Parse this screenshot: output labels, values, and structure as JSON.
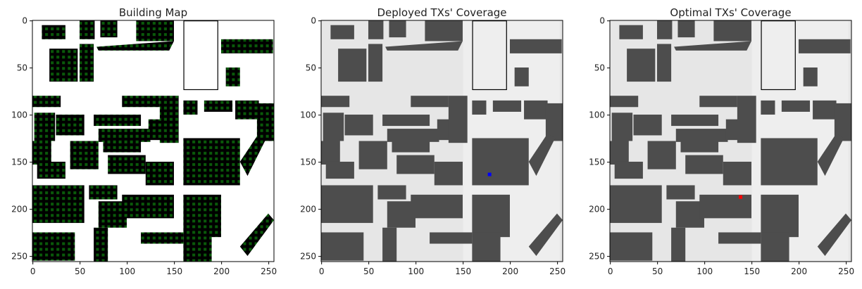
{
  "chart_data": [
    {
      "type": "image",
      "title": "Building Map",
      "xlim": [
        -0.5,
        255.5
      ],
      "ylim": [
        255.5,
        -0.5
      ],
      "xticks": [
        0,
        50,
        100,
        150,
        200,
        250
      ],
      "yticks": [
        0,
        50,
        100,
        150,
        200,
        250
      ],
      "style": "map"
    },
    {
      "type": "image",
      "title": "Deployed TXs' Coverage",
      "xlim": [
        -0.5,
        255.5
      ],
      "ylim": [
        255.5,
        -0.5
      ],
      "xticks": [
        0,
        50,
        100,
        150,
        200,
        250
      ],
      "yticks": [
        0,
        50,
        100,
        150,
        200,
        250
      ],
      "style": "coverage",
      "points": {
        "x": [
          178
        ],
        "y": [
          163
        ],
        "color": "#0000ff"
      }
    },
    {
      "type": "image",
      "title": "Optimal TXs' Coverage",
      "xlim": [
        -0.5,
        255.5
      ],
      "ylim": [
        255.5,
        -0.5
      ],
      "xticks": [
        0,
        50,
        100,
        150,
        200,
        250
      ],
      "yticks": [
        0,
        50,
        100,
        150,
        200,
        250
      ],
      "style": "coverage",
      "points": {
        "x": [
          138
        ],
        "y": [
          187
        ],
        "color": "#ff0000"
      }
    }
  ]
}
